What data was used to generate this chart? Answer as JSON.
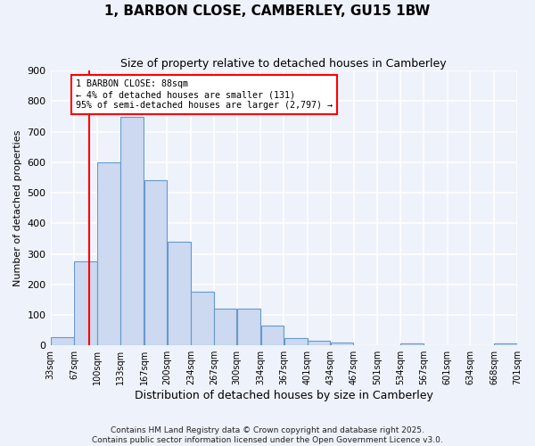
{
  "title": "1, BARBON CLOSE, CAMBERLEY, GU15 1BW",
  "subtitle": "Size of property relative to detached houses in Camberley",
  "xlabel": "Distribution of detached houses by size in Camberley",
  "ylabel": "Number of detached properties",
  "bin_edges": [
    33,
    67,
    100,
    133,
    167,
    200,
    234,
    267,
    300,
    334,
    367,
    401,
    434,
    467,
    501,
    534,
    567,
    601,
    634,
    668,
    701
  ],
  "bar_heights": [
    27,
    275,
    600,
    750,
    540,
    340,
    175,
    120,
    120,
    65,
    25,
    15,
    10,
    0,
    0,
    5,
    0,
    0,
    0,
    5
  ],
  "bar_color": "#ccd9f0",
  "bar_edge_color": "#6699cc",
  "background_color": "#eef2fb",
  "grid_color": "#ffffff",
  "ylim": [
    0,
    900
  ],
  "yticks": [
    0,
    100,
    200,
    300,
    400,
    500,
    600,
    700,
    800,
    900
  ],
  "red_line_x": 88,
  "annotation_text": "1 BARBON CLOSE: 88sqm\n← 4% of detached houses are smaller (131)\n95% of semi-detached houses are larger (2,797) →",
  "footer_line1": "Contains HM Land Registry data © Crown copyright and database right 2025.",
  "footer_line2": "Contains public sector information licensed under the Open Government Licence v3.0."
}
